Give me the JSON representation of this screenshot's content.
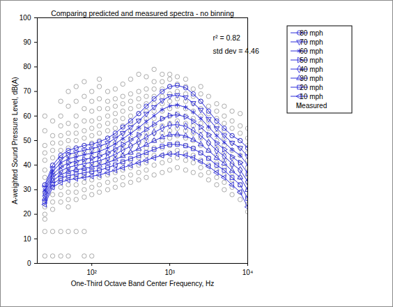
{
  "chart_data": {
    "type": "line",
    "title": "Comparing predicted and measured spectra - no binning",
    "x_label": "One-Third Octave Band Center Frequency, Hz",
    "y_label": "A-weighted Sound Pressure Level, dB(A)",
    "log": "x",
    "legend": "right",
    "annotations": [
      "r² = 0.82",
      "std dev = 4.46"
    ],
    "x": [
      25,
      31.5,
      40,
      50,
      63,
      80,
      100,
      125,
      160,
      200,
      250,
      315,
      400,
      500,
      630,
      800,
      1000,
      1250,
      1600,
      2000,
      2500,
      3150,
      4000,
      5000,
      6300,
      8000,
      10000
    ],
    "xlim": [
      20,
      10000
    ],
    "xticks": [
      {
        "value": 100,
        "label": "10²"
      },
      {
        "value": 1000,
        "label": "10³"
      },
      {
        "value": 10000,
        "label": "10⁴"
      }
    ],
    "ylim": [
      0,
      100
    ],
    "yticks": [
      0,
      10,
      20,
      30,
      40,
      50,
      60,
      70,
      80,
      90,
      100
    ],
    "series": [
      {
        "name": "80 mph",
        "color": "#2b2bd9",
        "marker": "circle",
        "values": [
          32,
          40,
          44,
          46,
          47,
          48,
          48.5,
          49.5,
          51,
          53,
          55.5,
          58,
          61,
          64,
          67,
          70,
          72,
          72.5,
          71.5,
          69,
          66,
          62,
          58,
          55,
          52,
          50,
          47
        ]
      },
      {
        "name": "70 mph",
        "color": "#2b2bd9",
        "marker": "triangle-down",
        "values": [
          30.9,
          38.7,
          42.4,
          44.3,
          45.2,
          46.1,
          46.6,
          47.6,
          49,
          50.9,
          53.1,
          55.4,
          58.1,
          60.9,
          63.6,
          66.3,
          68.1,
          68.5,
          67.6,
          65.3,
          62.5,
          58.8,
          55,
          52.1,
          49.1,
          47,
          43.6
        ]
      },
      {
        "name": "60 mph",
        "color": "#2b2bd9",
        "marker": "asterisk",
        "values": [
          29.7,
          37.4,
          40.9,
          42.6,
          43.4,
          44.3,
          44.8,
          45.6,
          47,
          48.7,
          50.8,
          52.9,
          55.3,
          57.7,
          60.1,
          62.6,
          64.1,
          64.5,
          63.6,
          61.6,
          59,
          55.6,
          52,
          49.3,
          46.3,
          44,
          40.1
        ]
      },
      {
        "name": "50 mph",
        "color": "#2b2bd9",
        "marker": "triangle-right",
        "values": [
          28.6,
          36.1,
          39.3,
          40.9,
          41.6,
          42.4,
          42.9,
          43.7,
          45,
          46.6,
          48.4,
          50.3,
          52.4,
          54.6,
          56.7,
          58.9,
          60.2,
          60.5,
          59.7,
          57.9,
          55.5,
          52.4,
          49,
          46.4,
          43.4,
          41,
          36.7
        ]
      },
      {
        "name": "40 mph",
        "color": "#2b2bd9",
        "marker": "diamond",
        "values": [
          27.4,
          34.9,
          37.7,
          39.1,
          39.9,
          40.6,
          41.1,
          41.8,
          43,
          44.4,
          46.1,
          47.7,
          49.6,
          51.4,
          53.3,
          55.1,
          56.3,
          56.5,
          55.8,
          54.1,
          52,
          49.1,
          46,
          43.6,
          40.6,
          38,
          33.3
        ]
      },
      {
        "name": "30 mph",
        "color": "#2b2bd9",
        "marker": "triangle-up",
        "values": [
          26.3,
          33.6,
          36.1,
          37.4,
          38.1,
          38.7,
          39.2,
          39.9,
          41,
          42.3,
          43.7,
          45.1,
          46.7,
          48.3,
          49.9,
          51.4,
          52.4,
          52.5,
          51.9,
          50.4,
          48.5,
          45.9,
          43,
          40.7,
          37.7,
          35,
          29.9
        ]
      },
      {
        "name": "20 mph",
        "color": "#2b2bd9",
        "marker": "square",
        "values": [
          25.1,
          32.3,
          34.6,
          35.7,
          36.3,
          36.9,
          37.4,
          37.9,
          39,
          40.1,
          41.4,
          42.6,
          43.9,
          45.1,
          46.4,
          47.7,
          48.4,
          48.5,
          47.9,
          46.7,
          45,
          42.7,
          40,
          37.9,
          34.9,
          32,
          26.4
        ]
      },
      {
        "name": "10 mph",
        "color": "#2b2bd9",
        "marker": "triangle-left",
        "values": [
          24,
          31,
          33,
          34,
          34.5,
          35,
          35.5,
          36,
          37,
          38,
          39,
          40,
          41,
          42,
          43,
          44,
          44.5,
          44.5,
          44,
          43,
          41.5,
          39.5,
          37,
          35,
          32,
          29,
          23
        ]
      },
      {
        "name": "Measured",
        "type": "scatter",
        "color": "#a0a0a0",
        "marker": "circle",
        "values": [
          [
            3,
            13,
            18,
            20,
            23,
            26,
            29,
            32,
            35,
            38,
            42,
            45,
            48,
            54,
            60
          ],
          [
            3,
            13,
            22,
            25,
            28,
            31,
            34,
            37,
            40,
            43,
            46,
            49,
            52,
            58
          ],
          [
            3,
            13,
            25,
            28,
            31,
            34,
            37,
            40,
            43,
            46,
            49,
            52,
            56,
            60,
            66
          ],
          [
            3,
            13,
            23,
            26,
            29,
            32,
            35,
            38,
            41,
            44,
            47,
            50,
            53,
            57,
            64,
            70
          ],
          [
            13,
            26,
            29,
            32,
            35,
            38,
            41,
            44,
            47,
            50,
            53,
            56,
            60,
            66,
            72
          ],
          [
            3,
            13,
            27,
            30,
            33,
            36,
            39,
            42,
            45,
            48,
            51,
            54,
            58,
            63,
            68,
            74
          ],
          [
            3,
            28,
            31,
            34,
            37,
            40,
            43,
            46,
            49,
            52,
            55,
            58,
            62,
            66,
            70
          ],
          [
            29,
            32,
            35,
            38,
            41,
            44,
            47,
            50,
            53,
            56,
            59,
            63,
            67,
            72,
            75
          ],
          [
            30,
            33,
            36,
            39,
            42,
            45,
            48,
            51,
            54,
            57,
            60,
            63,
            66,
            70
          ],
          [
            31,
            34,
            37,
            40,
            43,
            46,
            49,
            52,
            55,
            58,
            61,
            64,
            67,
            71
          ],
          [
            32,
            35,
            38,
            41,
            44,
            47,
            50,
            53,
            56,
            59,
            62,
            65,
            68,
            73
          ],
          [
            33,
            36,
            39,
            42,
            45,
            48,
            51,
            54,
            57,
            60,
            63,
            66,
            69,
            75
          ],
          [
            34,
            37,
            40,
            43,
            46,
            49,
            52,
            55,
            58,
            61,
            64,
            67,
            70,
            77
          ],
          [
            35,
            38,
            41,
            44,
            47,
            50,
            53,
            56,
            59,
            62,
            65,
            68,
            71,
            76
          ],
          [
            36,
            40,
            44,
            47,
            50,
            53,
            56,
            59,
            62,
            65,
            68,
            71,
            74,
            79
          ],
          [
            37,
            41,
            44,
            47,
            50,
            53,
            56,
            59,
            62,
            65,
            68,
            71,
            74,
            77
          ],
          [
            38,
            42,
            45,
            48,
            51,
            54,
            57,
            60,
            63,
            66,
            69,
            72,
            75,
            77
          ],
          [
            39,
            43,
            46,
            49,
            52,
            55,
            58,
            61,
            64,
            67,
            70,
            73,
            76
          ],
          [
            38,
            42,
            45,
            48,
            51,
            54,
            57,
            60,
            63,
            66,
            69,
            72,
            75
          ],
          [
            37,
            41,
            44,
            47,
            50,
            53,
            56,
            59,
            62,
            65,
            68,
            71
          ],
          [
            36,
            39,
            42,
            45,
            48,
            51,
            54,
            57,
            60,
            63,
            66,
            69,
            72
          ],
          [
            34,
            37,
            40,
            43,
            46,
            49,
            52,
            55,
            58,
            61,
            64,
            68
          ],
          [
            32,
            35,
            38,
            41,
            44,
            47,
            50,
            53,
            56,
            59,
            62,
            65
          ],
          [
            30,
            33,
            36,
            39,
            42,
            45,
            48,
            51,
            54,
            57,
            60,
            64
          ],
          [
            28,
            31,
            34,
            37,
            40,
            43,
            46,
            49,
            52,
            55,
            58,
            62
          ],
          [
            26,
            29,
            32,
            35,
            38,
            41,
            44,
            47,
            50,
            53,
            56,
            61
          ],
          [
            21,
            24,
            27,
            30,
            33,
            36,
            39,
            42,
            45,
            48,
            51,
            55
          ]
        ]
      }
    ]
  }
}
